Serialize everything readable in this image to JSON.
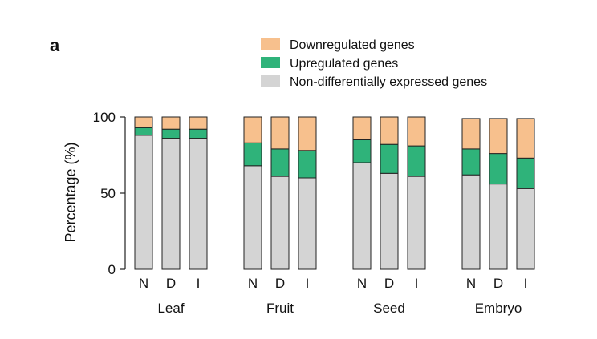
{
  "chart_data": {
    "type": "bar",
    "stacked": true,
    "panel_label": "a",
    "ylabel": "Percentage (%)",
    "ylim": [
      0,
      100
    ],
    "yticks": [
      0,
      50,
      100
    ],
    "groups": [
      {
        "name": "Leaf",
        "categories": [
          "N",
          "D",
          "I"
        ]
      },
      {
        "name": "Fruit",
        "categories": [
          "N",
          "D",
          "I"
        ]
      },
      {
        "name": "Seed",
        "categories": [
          "N",
          "D",
          "I"
        ]
      },
      {
        "name": "Embryo",
        "categories": [
          "N",
          "D",
          "I"
        ]
      }
    ],
    "series": [
      {
        "name": "Non-differentially expressed genes",
        "color": "#d4d4d4",
        "values": [
          88,
          86,
          86,
          68,
          61,
          60,
          70,
          63,
          61,
          62,
          56,
          53
        ]
      },
      {
        "name": "Upregulated genes",
        "color": "#2fb37a",
        "values": [
          5,
          6,
          6,
          15,
          18,
          18,
          15,
          19,
          20,
          17,
          20,
          20
        ]
      },
      {
        "name": "Downregulated genes",
        "color": "#f7c08d",
        "values": [
          7,
          8,
          8,
          17,
          21,
          22,
          15,
          18,
          19,
          20,
          23,
          26
        ]
      }
    ],
    "legend": {
      "position": "top-right",
      "order": [
        "Downregulated genes",
        "Upregulated genes",
        "Non-differentially expressed genes"
      ]
    },
    "grid": false
  }
}
